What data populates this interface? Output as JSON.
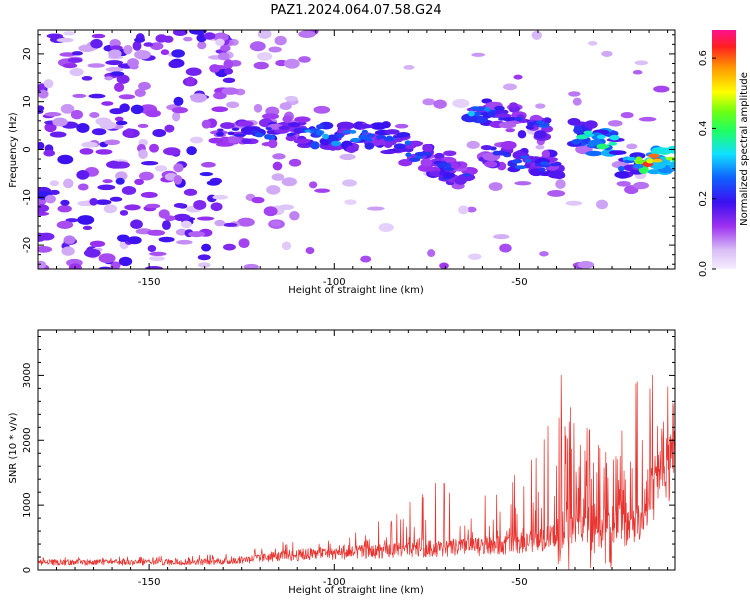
{
  "title": "PAZ1.2024.064.07.58.G24",
  "chart_data": [
    {
      "type": "heatmap",
      "xlabel": "Height of straight line (km)",
      "ylabel": "Frequency (Hz)",
      "xlim": [
        -180,
        -8
      ],
      "ylim": [
        -25,
        25
      ],
      "xticks": [
        -150,
        -100,
        -50
      ],
      "yticks": [
        -20,
        -10,
        0,
        10,
        20
      ],
      "colorbar": {
        "label": "Normalized spectral amplitude",
        "range": [
          0,
          0.68
        ],
        "ticks": [
          0.0,
          0.2,
          0.4,
          0.6
        ]
      },
      "ridge": [
        {
          "x": -128,
          "y": 3.5,
          "amp": 0.22
        },
        {
          "x": -120,
          "y": 3.5,
          "amp": 0.25
        },
        {
          "x": -112,
          "y": 4,
          "amp": 0.2
        },
        {
          "x": -105,
          "y": 3,
          "amp": 0.3
        },
        {
          "x": -97,
          "y": 2.5,
          "amp": 0.28
        },
        {
          "x": -90,
          "y": 3,
          "amp": 0.26
        },
        {
          "x": -83,
          "y": 1.5,
          "amp": 0.25
        },
        {
          "x": -77,
          "y": -1,
          "amp": 0.27
        },
        {
          "x": -72,
          "y": -3,
          "amp": 0.25
        },
        {
          "x": -67,
          "y": -5.5,
          "amp": 0.22
        },
        {
          "x": -60,
          "y": 8,
          "amp": 0.3
        },
        {
          "x": -53,
          "y": 7.5,
          "amp": 0.22
        },
        {
          "x": -46,
          "y": 5,
          "amp": 0.25
        },
        {
          "x": -56,
          "y": -1,
          "amp": 0.22
        },
        {
          "x": -49,
          "y": -2.5,
          "amp": 0.25
        },
        {
          "x": -42,
          "y": -3,
          "amp": 0.24
        },
        {
          "x": -33,
          "y": 3.5,
          "amp": 0.35
        },
        {
          "x": -27,
          "y": 1.5,
          "amp": 0.38
        },
        {
          "x": -20,
          "y": -3,
          "amp": 0.3
        },
        {
          "x": -14,
          "y": -2.5,
          "amp": 0.6
        },
        {
          "x": -9,
          "y": -2,
          "amp": 0.45
        }
      ]
    },
    {
      "type": "line",
      "xlabel": "Height of straight line (km)",
      "ylabel": "SNR (10 * v/v)",
      "xlim": [
        -180,
        -8
      ],
      "ylim": [
        0,
        3700
      ],
      "xticks": [
        -150,
        -100,
        -50
      ],
      "yticks": [
        0,
        1000,
        2000,
        3000
      ],
      "series_color": "#e8322e",
      "envelope": [
        {
          "x": -180,
          "base": 130,
          "peak": 200
        },
        {
          "x": -150,
          "base": 130,
          "peak": 210
        },
        {
          "x": -128,
          "base": 150,
          "peak": 250
        },
        {
          "x": -118,
          "base": 220,
          "peak": 500
        },
        {
          "x": -108,
          "base": 260,
          "peak": 420
        },
        {
          "x": -95,
          "base": 300,
          "peak": 600
        },
        {
          "x": -83,
          "base": 330,
          "peak": 900
        },
        {
          "x": -70,
          "base": 380,
          "peak": 1550
        },
        {
          "x": -58,
          "base": 400,
          "peak": 1100
        },
        {
          "x": -45,
          "base": 500,
          "peak": 1800
        },
        {
          "x": -36,
          "base": 650,
          "peak": 3700
        },
        {
          "x": -25,
          "base": 700,
          "peak": 2400
        },
        {
          "x": -18,
          "base": 800,
          "peak": 3400
        },
        {
          "x": -12,
          "base": 1600,
          "peak": 3000
        },
        {
          "x": -8,
          "base": 1800,
          "peak": 3000
        }
      ]
    }
  ]
}
